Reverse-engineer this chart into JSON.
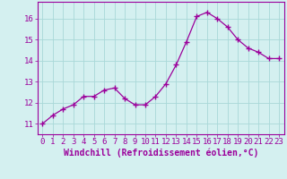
{
  "x": [
    0,
    1,
    2,
    3,
    4,
    5,
    6,
    7,
    8,
    9,
    10,
    11,
    12,
    13,
    14,
    15,
    16,
    17,
    18,
    19,
    20,
    21,
    22,
    23
  ],
  "y": [
    11.0,
    11.4,
    11.7,
    11.9,
    12.3,
    12.3,
    12.6,
    12.7,
    12.2,
    11.9,
    11.9,
    12.3,
    12.9,
    13.8,
    14.9,
    16.1,
    16.3,
    16.0,
    15.6,
    15.0,
    14.6,
    14.4,
    14.1,
    14.1
  ],
  "line_color": "#9b009b",
  "marker": "+",
  "markersize": 4,
  "linewidth": 0.9,
  "markeredgewidth": 1.0,
  "xlabel": "Windchill (Refroidissement éolien,°C)",
  "xlabel_fontsize": 7,
  "bg_color": "#d4f0f0",
  "grid_color": "#a8d8d8",
  "tick_color": "#9b009b",
  "label_color": "#9b009b",
  "ylim": [
    10.5,
    16.8
  ],
  "xlim": [
    -0.5,
    23.5
  ],
  "yticks": [
    11,
    12,
    13,
    14,
    15,
    16
  ],
  "xticks": [
    0,
    1,
    2,
    3,
    4,
    5,
    6,
    7,
    8,
    9,
    10,
    11,
    12,
    13,
    14,
    15,
    16,
    17,
    18,
    19,
    20,
    21,
    22,
    23
  ],
  "tick_fontsize": 6.5,
  "spine_color": "#9b009b"
}
